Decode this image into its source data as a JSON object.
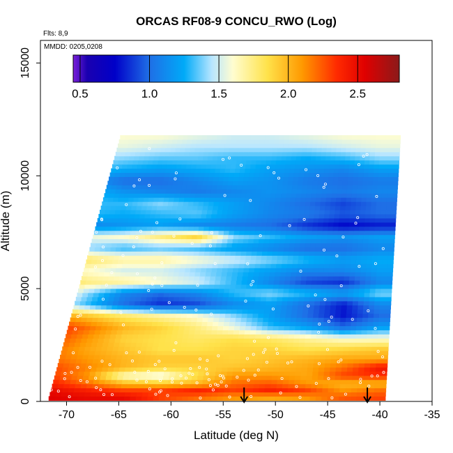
{
  "chart_data": {
    "type": "heatmap",
    "title": "ORCAS RF08-9 CONCU_RWO (Log)",
    "xlabel": "Latitude (deg N)",
    "ylabel": "Altitude (m)",
    "xlim": [
      -72.5,
      -35
    ],
    "ylim": [
      0,
      16000
    ],
    "x_ticks": [
      -70,
      -65,
      -60,
      -55,
      -50,
      -45,
      -40,
      -35
    ],
    "y_ticks": [
      0,
      5000,
      10000,
      15000
    ],
    "annotations": {
      "flights": "Flts: 8,9",
      "dates": "MMDD: 0205,0208"
    },
    "colorbar": {
      "min": 0.45,
      "max": 2.8,
      "ticks": [
        0.5,
        1.0,
        1.5,
        2.0,
        2.5
      ],
      "tick_labels": [
        "0.5",
        "1.0",
        "1.5",
        "2.0",
        "2.5"
      ],
      "colors": [
        "#7b1fd8",
        "#1a00b0",
        "#0000c8",
        "#1f6fe6",
        "#00aaf8",
        "#b8e6ff",
        "#fffdd0",
        "#ffe24a",
        "#ff9900",
        "#ff2a00",
        "#e00000",
        "#8b1a1a"
      ],
      "color_stops": [
        0.45,
        0.55,
        0.75,
        1.0,
        1.25,
        1.45,
        1.6,
        1.85,
        2.1,
        2.35,
        2.55,
        2.8
      ]
    },
    "arrows_at_latitude": [
      -53,
      -41.2
    ],
    "altitude_levels": [
      200,
      500,
      800,
      1150,
      1500,
      1900,
      2300,
      2800,
      3300,
      3800,
      4300,
      4800,
      5300,
      5800,
      6300,
      6800,
      7300,
      7800,
      8300,
      8800,
      9300,
      9800,
      10300,
      10800,
      11300,
      11800
    ],
    "latitude_nodes": [
      -71.5,
      -68,
      -64.5,
      -61,
      -57.5,
      -54,
      -50.5,
      -47,
      -43.5,
      -40
    ],
    "values": [
      [
        2.55,
        2.5,
        2.5,
        2.3,
        2.2,
        2.1,
        2.05,
        2.1,
        2.25,
        2.3
      ],
      [
        2.5,
        2.4,
        2.3,
        2.3,
        2.4,
        2.3,
        2.4,
        2.3,
        2.1,
        2.2
      ],
      [
        2.4,
        2.2,
        2.0,
        1.95,
        2.0,
        2.2,
        2.25,
        2.1,
        2.0,
        2.0
      ],
      [
        2.3,
        2.1,
        1.6,
        1.5,
        1.85,
        2.1,
        2.1,
        2.05,
        2.3,
        2.35
      ],
      [
        2.3,
        2.15,
        2.0,
        1.9,
        1.9,
        1.95,
        2.0,
        2.05,
        2.2,
        2.45
      ],
      [
        2.2,
        2.1,
        2.0,
        1.95,
        1.95,
        1.9,
        1.95,
        2.0,
        2.05,
        2.05
      ],
      [
        2.2,
        2.05,
        1.95,
        1.85,
        1.85,
        1.9,
        1.9,
        1.85,
        1.9,
        1.95
      ],
      [
        2.3,
        2.1,
        1.9,
        1.85,
        1.8,
        1.85,
        1.8,
        1.7,
        1.6,
        1.6
      ],
      [
        2.4,
        2.2,
        2.0,
        1.9,
        1.75,
        1.55,
        1.3,
        1.2,
        1.0,
        1.2
      ],
      [
        2.1,
        1.95,
        1.8,
        1.7,
        1.6,
        1.4,
        1.2,
        1.0,
        0.8,
        1.0
      ],
      [
        1.6,
        1.3,
        1.0,
        0.85,
        0.9,
        1.1,
        1.2,
        1.0,
        0.8,
        1.1
      ],
      [
        1.8,
        1.4,
        1.1,
        1.0,
        1.1,
        1.3,
        1.4,
        1.3,
        1.2,
        1.4
      ],
      [
        1.9,
        1.75,
        1.7,
        1.6,
        1.5,
        1.3,
        1.1,
        0.9,
        0.85,
        1.1
      ],
      [
        1.7,
        1.6,
        1.5,
        1.5,
        1.4,
        1.3,
        1.2,
        1.1,
        1.1,
        1.2
      ],
      [
        1.85,
        1.8,
        1.7,
        1.7,
        1.6,
        1.5,
        1.4,
        1.3,
        1.2,
        1.25
      ],
      [
        1.4,
        1.4,
        1.3,
        1.35,
        1.3,
        1.2,
        1.1,
        1.0,
        1.0,
        1.1
      ],
      [
        1.6,
        1.55,
        1.6,
        1.75,
        1.9,
        1.4,
        1.3,
        1.2,
        1.15,
        1.2
      ],
      [
        1.15,
        1.1,
        1.15,
        1.2,
        1.1,
        1.05,
        1.0,
        0.85,
        0.75,
        0.8
      ],
      [
        1.4,
        1.3,
        1.25,
        1.3,
        1.35,
        1.2,
        1.1,
        1.05,
        0.95,
        1.0
      ],
      [
        1.35,
        1.3,
        1.3,
        1.4,
        1.3,
        1.2,
        1.1,
        1.0,
        0.9,
        1.0
      ],
      [
        1.4,
        1.3,
        1.15,
        1.1,
        1.05,
        1.1,
        1.15,
        1.1,
        1.05,
        1.1
      ],
      [
        1.35,
        1.15,
        1.0,
        1.0,
        1.1,
        1.2,
        1.15,
        1.05,
        1.0,
        1.05
      ],
      [
        1.5,
        1.35,
        1.25,
        1.2,
        1.25,
        1.3,
        1.2,
        1.15,
        1.1,
        1.2
      ],
      [
        1.55,
        1.45,
        1.4,
        1.35,
        1.35,
        1.3,
        1.3,
        1.25,
        1.3,
        1.4
      ],
      [
        1.6,
        1.55,
        1.55,
        1.5,
        1.45,
        1.45,
        1.45,
        1.45,
        1.5,
        1.55
      ],
      [
        1.65,
        1.6,
        1.6,
        1.6,
        1.55,
        1.5,
        1.5,
        1.55,
        1.6,
        1.6
      ]
    ]
  }
}
